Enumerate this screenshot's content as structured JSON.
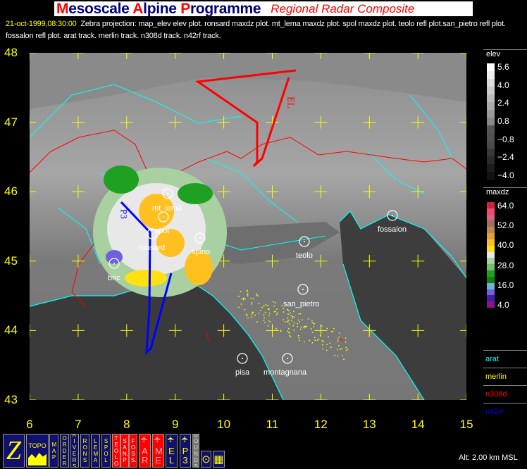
{
  "title": {
    "main_parts": [
      {
        "t": "M",
        "red": true
      },
      {
        "t": "esoscale ",
        "red": false
      },
      {
        "t": "A",
        "red": true
      },
      {
        "t": "lpine ",
        "red": false
      },
      {
        "t": "P",
        "red": true
      },
      {
        "t": "rogramme",
        "red": false
      }
    ],
    "main": "Mesoscale Alpine Programme",
    "subtitle": "Regional Radar Composite"
  },
  "info": {
    "datetime": "21-oct-1999,08:30:00",
    "text": "Zebra projection: map_elev elev plot.  ronsard maxdz plot.  mt_lema maxdz plot.  spol maxdz plot.  teolo refl plot.san_pietro refl plot.  fossalon refl plot. arat track.   merlin track.   n308d track.   n42rf track."
  },
  "axes": {
    "lat_labels": [
      "48",
      "47",
      "46",
      "45",
      "44",
      "43"
    ],
    "lon_labels": [
      "6",
      "7",
      "8",
      "9",
      "10",
      "11",
      "12",
      "13",
      "14",
      "15"
    ]
  },
  "stations": [
    {
      "name": "mt_lema"
    },
    {
      "name": "spol"
    },
    {
      "name": "ronsard"
    },
    {
      "name": "spino"
    },
    {
      "name": "bric"
    },
    {
      "name": "teolo"
    },
    {
      "name": "san_pietro"
    },
    {
      "name": "fossalon"
    },
    {
      "name": "pisa"
    },
    {
      "name": "montagnana"
    }
  ],
  "track_labels": {
    "red": "EL",
    "blue": "P3"
  },
  "legend": {
    "elev": {
      "title": "elev",
      "labels": [
        "5.6",
        "4.0",
        "2.4",
        "0.8",
        "−0.8",
        "−2.4",
        "−4.0"
      ],
      "colors": [
        "#ffffff",
        "#eeeeee",
        "#dddddd",
        "#cccccc",
        "#bbbbbb",
        "#aaaaaa",
        "#999999",
        "#888888",
        "#555555",
        "#505050",
        "#4a4a4a",
        "#383838",
        "#2a2a2a",
        "#1c1c1c",
        "#111111"
      ]
    },
    "maxdz": {
      "title": "maxdz",
      "labels": [
        "64.0",
        "52.0",
        "40.0",
        "28.0",
        "16.0",
        "4.0"
      ],
      "colors": [
        "#d02040",
        "#f04870",
        "#d86078",
        "#a07060",
        "#c08848",
        "#e0a038",
        "#ffc020",
        "#ffe010",
        "#e8e8e8",
        "#a8d0a0",
        "#70c070",
        "#20a020",
        "#108010",
        "#70b0d0",
        "#7060e0",
        "#4020a0",
        "#901090"
      ]
    },
    "tracks": [
      {
        "name": "arat",
        "color": "#00ffff"
      },
      {
        "name": "merlin",
        "color": "#ffff00"
      },
      {
        "name": "n308d",
        "color": "#ff0000"
      },
      {
        "name": "n42rf",
        "color": "#0000ff"
      }
    ]
  },
  "toolbar": {
    "buttons": [
      {
        "id": "zebra",
        "label": "Z"
      },
      {
        "id": "topo",
        "label": "TOPO"
      },
      {
        "id": "map",
        "label": "MAP"
      },
      {
        "id": "borders",
        "label": "BORDERS"
      },
      {
        "id": "rivers",
        "label": "RIVERS"
      },
      {
        "id": "rons",
        "label": "RONS"
      },
      {
        "id": "lema",
        "label": "LEMA"
      },
      {
        "id": "spol",
        "label": "SPOL"
      },
      {
        "id": "teolo",
        "label": "TEOLO"
      },
      {
        "id": "sanp",
        "label": "SAN.P"
      },
      {
        "id": "foss",
        "label": "FOSS."
      },
      {
        "id": "ar",
        "label": "AR"
      },
      {
        "id": "me",
        "label": "ME"
      },
      {
        "id": "el",
        "label": "EL"
      },
      {
        "id": "p3",
        "label": "P3"
      },
      {
        "id": "bounds",
        "label": "BOUNDS"
      }
    ]
  },
  "status": {
    "altitude": "Alt: 2.00 km MSL"
  }
}
